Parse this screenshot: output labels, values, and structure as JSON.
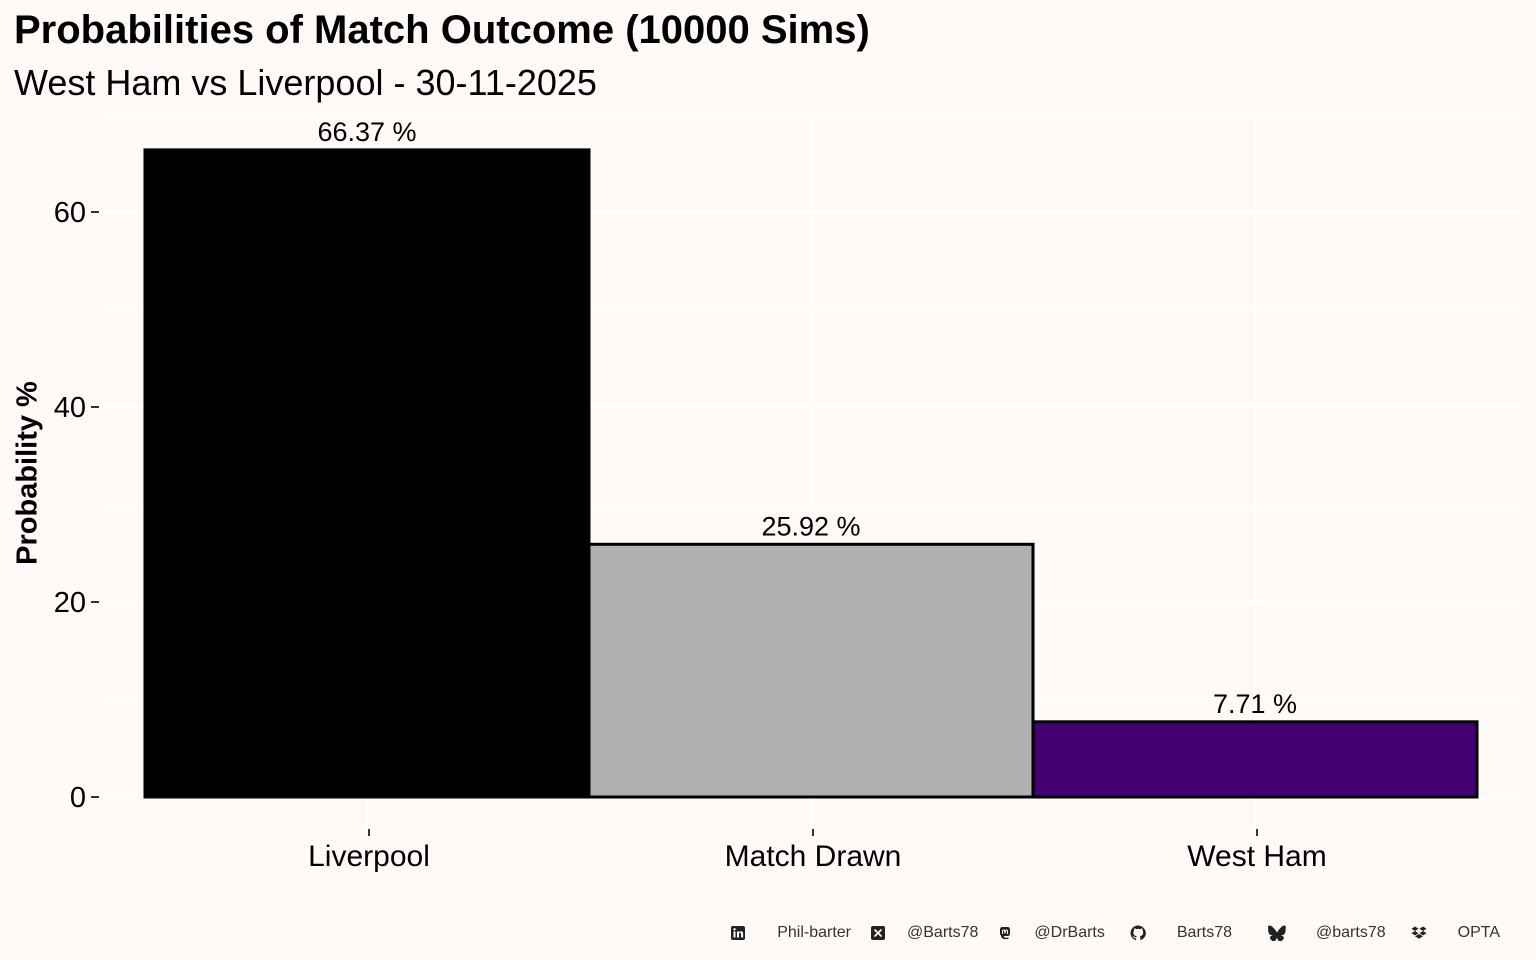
{
  "title": "Probabilities of Match Outcome (10000 Sims)",
  "subtitle": "West Ham vs Liverpool - 30-11-2025",
  "chart_data": {
    "type": "bar",
    "categories": [
      "Liverpool",
      "Match Drawn",
      "West Ham"
    ],
    "values": [
      66.37,
      25.92,
      7.71
    ],
    "data_labels": [
      "66.37  %",
      "25.92  %",
      "7.71  %"
    ],
    "colors": [
      "#000000",
      "#b0b0b0",
      "#420070"
    ],
    "ylabel": "Probability %",
    "xlabel": "",
    "ylim": [
      0,
      70
    ],
    "yticks": [
      0,
      20,
      40,
      60
    ],
    "grid": true,
    "legend": "none"
  },
  "footer": {
    "items": [
      {
        "icon": "linkedin-icon",
        "text": "Phil-barter"
      },
      {
        "icon": "x-twitter-icon",
        "text": "@Barts78"
      },
      {
        "icon": "mastodon-icon",
        "text": "@DrBarts"
      },
      {
        "icon": "github-icon",
        "text": "Barts78"
      },
      {
        "icon": "bluesky-icon",
        "text": "@barts78"
      },
      {
        "icon": "dropbox-icon",
        "text": "OPTA"
      }
    ]
  }
}
